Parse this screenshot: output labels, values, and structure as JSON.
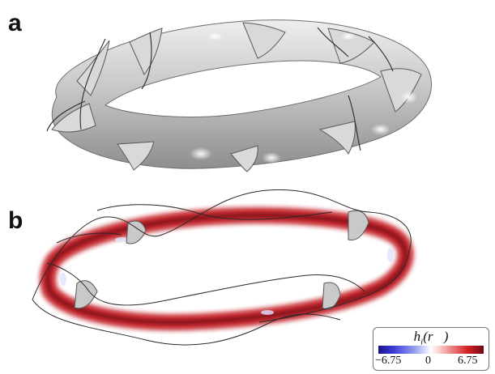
{
  "panels": {
    "a_label": "a",
    "b_label": "b"
  },
  "legend": {
    "symbol": "h",
    "subscript": "i",
    "argument": "(r⃗)",
    "tick_min": "−6.75",
    "tick_mid": "0",
    "tick_max": "6.75"
  }
}
